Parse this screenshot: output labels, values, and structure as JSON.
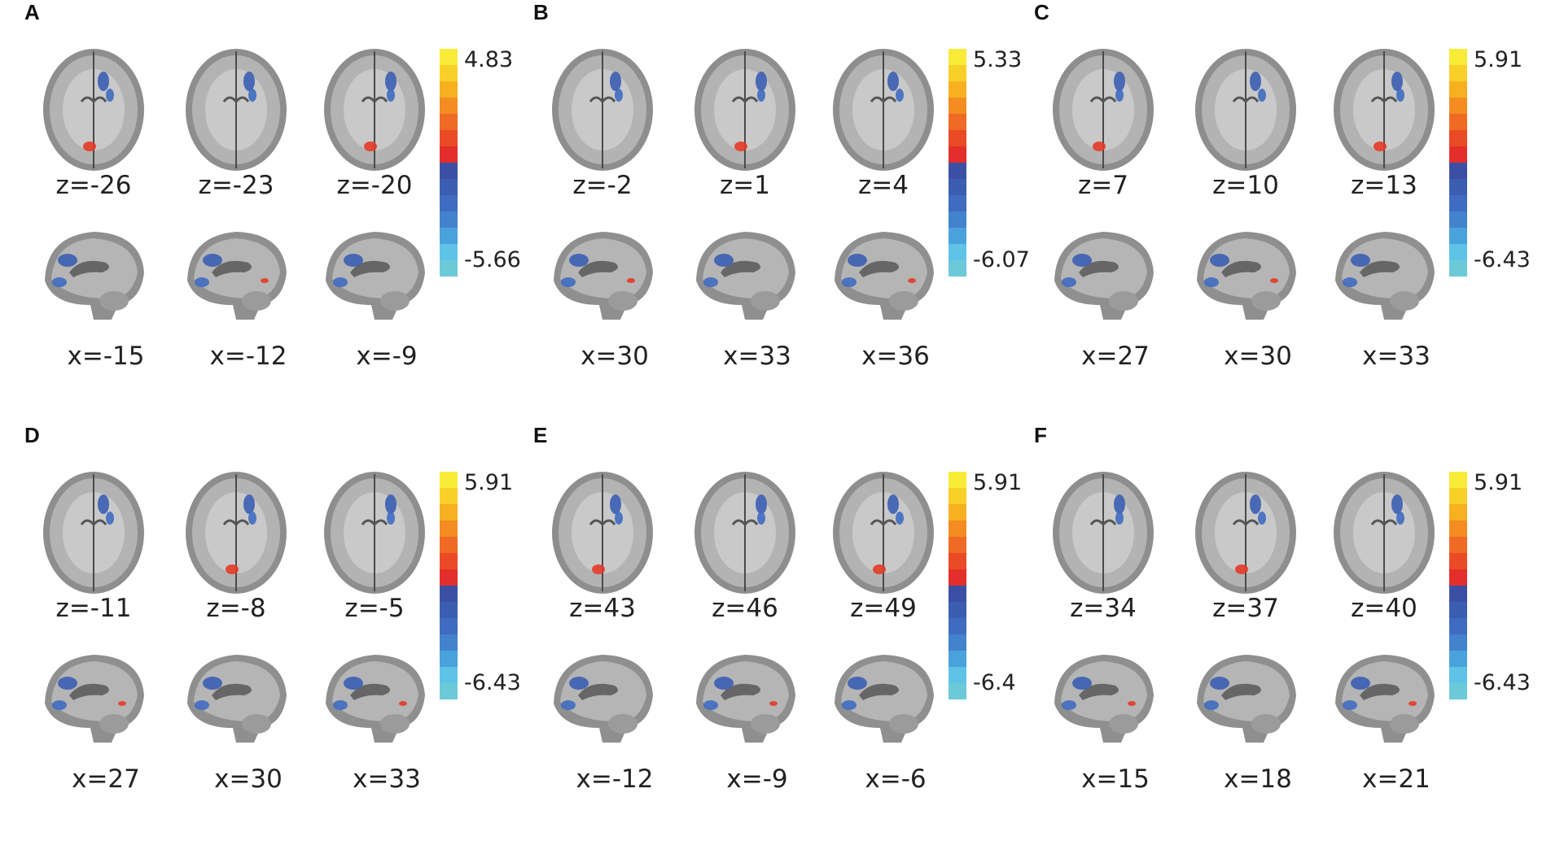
{
  "colorbar_colors": [
    "#f8ec38",
    "#f8d028",
    "#f6b020",
    "#f48c22",
    "#ef6a24",
    "#ea4a26",
    "#e42e2c",
    "#3b50a4",
    "#3c5eb2",
    "#3f6cc0",
    "#4382cc",
    "#4aa2dc",
    "#5fc3e8",
    "#6cc9d8"
  ],
  "panels": [
    {
      "letter": "A",
      "top_labels": [
        "z=-26",
        "z=-23",
        "z=-20"
      ],
      "bottom_labels": [
        "x=-15",
        "x=-12",
        "x=-9"
      ],
      "cb_max": "4.83",
      "cb_min": "-5.66"
    },
    {
      "letter": "B",
      "top_labels": [
        "z=-2",
        "z=1",
        "z=4"
      ],
      "bottom_labels": [
        "x=30",
        "x=33",
        "x=36"
      ],
      "cb_max": "5.33",
      "cb_min": "-6.07"
    },
    {
      "letter": "C",
      "top_labels": [
        "z=7",
        "z=10",
        "z=13"
      ],
      "bottom_labels": [
        "x=27",
        "x=30",
        "x=33"
      ],
      "cb_max": "5.91",
      "cb_min": "-6.43"
    },
    {
      "letter": "D",
      "top_labels": [
        "z=-11",
        "z=-8",
        "z=-5"
      ],
      "bottom_labels": [
        "x=27",
        "x=30",
        "x=33"
      ],
      "cb_max": "5.91",
      "cb_min": "-6.43"
    },
    {
      "letter": "E",
      "top_labels": [
        "z=43",
        "z=46",
        "z=49"
      ],
      "bottom_labels": [
        "x=-12",
        "x=-9",
        "x=-6"
      ],
      "cb_max": "5.91",
      "cb_min": "-6.4"
    },
    {
      "letter": "F",
      "top_labels": [
        "z=34",
        "z=37",
        "z=40"
      ],
      "bottom_labels": [
        "x=15",
        "x=18",
        "x=21"
      ],
      "cb_max": "5.91",
      "cb_min": "-6.43"
    }
  ]
}
